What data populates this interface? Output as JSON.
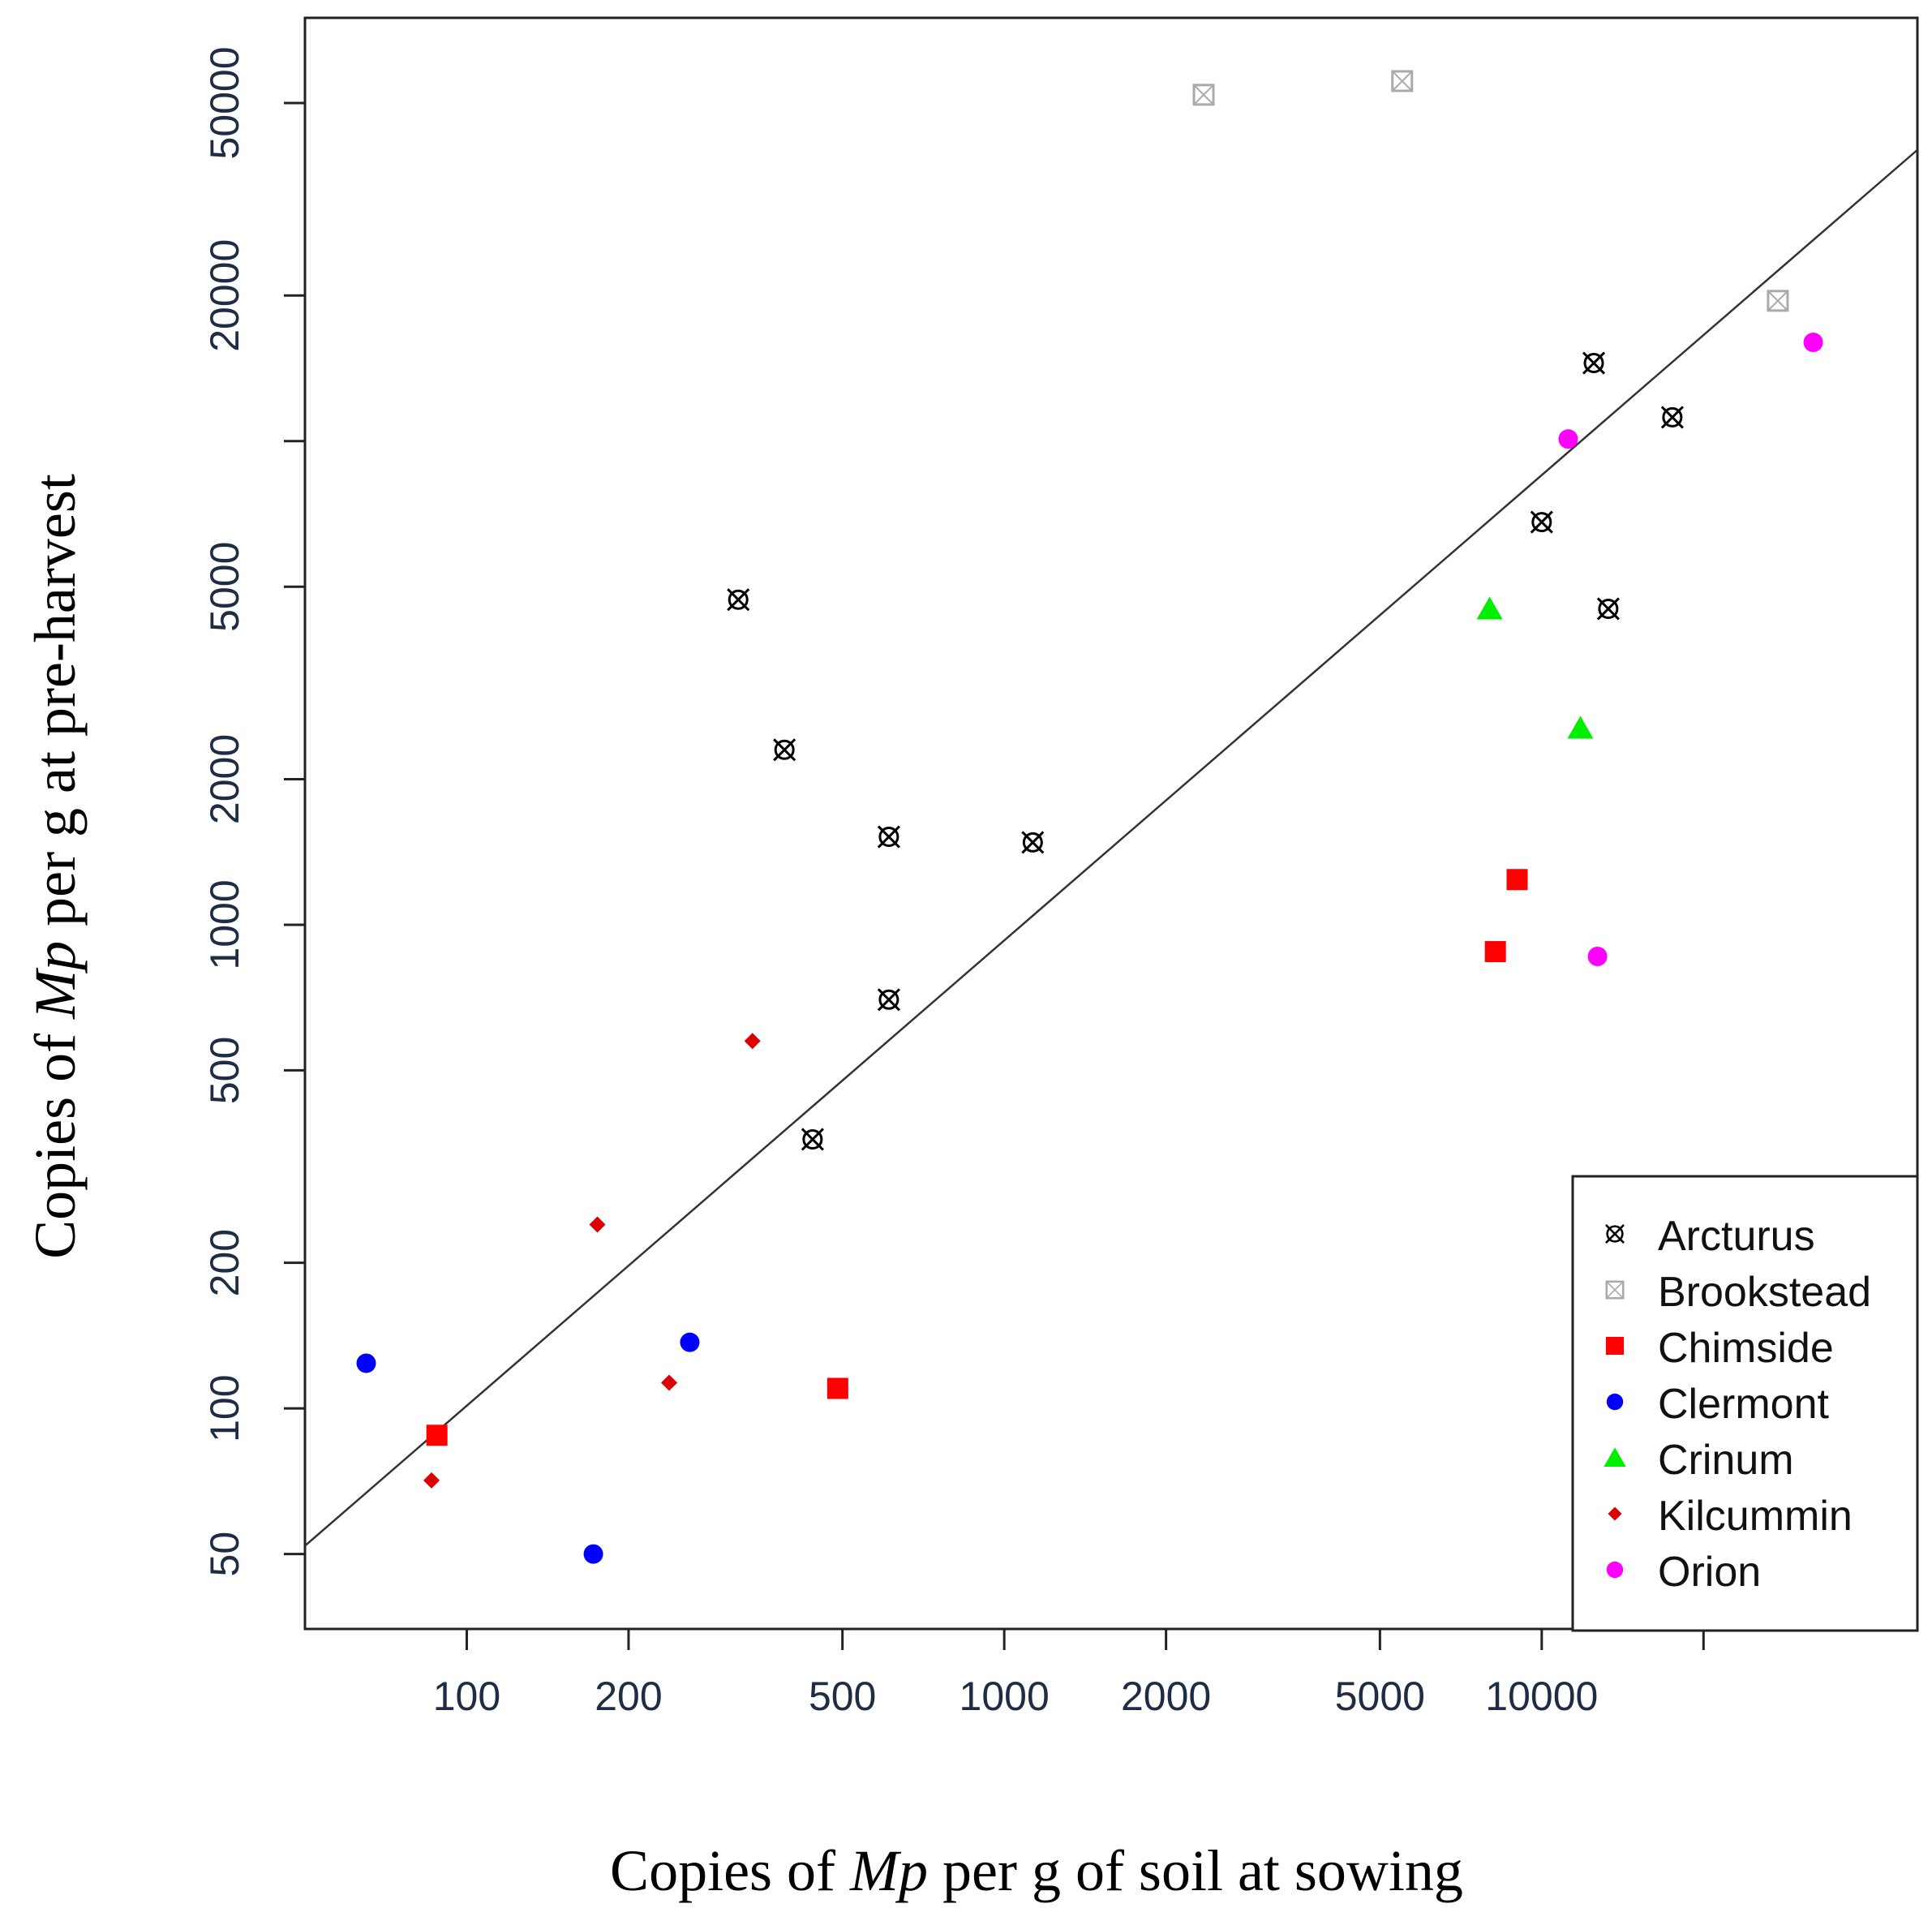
{
  "chart_data": {
    "type": "scatter",
    "x_scale": "log",
    "y_scale": "log",
    "xlabel": {
      "pre": "Copies of ",
      "italic": "Mp",
      "post": " per g of soil at sowing"
    },
    "ylabel": {
      "pre": "Copies of ",
      "italic": "Mp",
      "post": " per g at pre-harvest"
    },
    "xlim": [
      50,
      50000
    ],
    "ylim": [
      35,
      75000
    ],
    "x_ticks": [
      100,
      200,
      500,
      1000,
      2000,
      5000,
      10000,
      20000
    ],
    "x_tick_labels": [
      "100",
      "200",
      "500",
      "1000",
      "2000",
      "5000",
      "10000",
      ""
    ],
    "y_ticks": [
      50,
      100,
      200,
      500,
      1000,
      2000,
      5000,
      10000,
      20000,
      50000
    ],
    "y_tick_labels": [
      "50",
      "100",
      "200",
      "500",
      "1000",
      "2000",
      "5000",
      "",
      "20000",
      "50000"
    ],
    "grid": false,
    "legend_position": "bottom-right",
    "fit_line": {
      "type": "line",
      "from": [
        50,
        52
      ],
      "to": [
        50000,
        40000
      ]
    },
    "series": [
      {
        "name": "Arcturus",
        "marker": "crossed-circle",
        "color": "#000000",
        "points": [
          [
            320,
            4700
          ],
          [
            390,
            2300
          ],
          [
            610,
            1520
          ],
          [
            1130,
            1480
          ],
          [
            610,
            700
          ],
          [
            440,
            360
          ],
          [
            10000,
            6800
          ],
          [
            12500,
            14500
          ],
          [
            17500,
            11200
          ],
          [
            13300,
            4500
          ]
        ]
      },
      {
        "name": "Brookstead",
        "marker": "crossed-square",
        "color": "#aaaaaa",
        "points": [
          [
            2350,
            52000
          ],
          [
            5500,
            55500
          ],
          [
            27500,
            19500
          ]
        ]
      },
      {
        "name": "Chimside",
        "marker": "square",
        "color": "#ff0000",
        "points": [
          [
            88,
            88
          ],
          [
            490,
            110
          ],
          [
            9000,
            1240
          ],
          [
            8200,
            880
          ]
        ]
      },
      {
        "name": "Clermont",
        "marker": "circle",
        "color": "#0000ff",
        "points": [
          [
            65,
            124
          ],
          [
            172,
            50
          ],
          [
            260,
            137
          ]
        ]
      },
      {
        "name": "Crinum",
        "marker": "triangle",
        "color": "#00ee00",
        "points": [
          [
            8000,
            4500
          ],
          [
            11800,
            2550
          ]
        ]
      },
      {
        "name": "Kilcummin",
        "marker": "diamond",
        "color": "#dd0000",
        "points": [
          [
            86,
            71
          ],
          [
            175,
            240
          ],
          [
            238,
            113
          ],
          [
            340,
            575
          ]
        ]
      },
      {
        "name": "Orion",
        "marker": "circle",
        "color": "#ff00ff",
        "points": [
          [
            11200,
            10100
          ],
          [
            12700,
            860
          ],
          [
            32000,
            16000
          ]
        ]
      }
    ]
  }
}
